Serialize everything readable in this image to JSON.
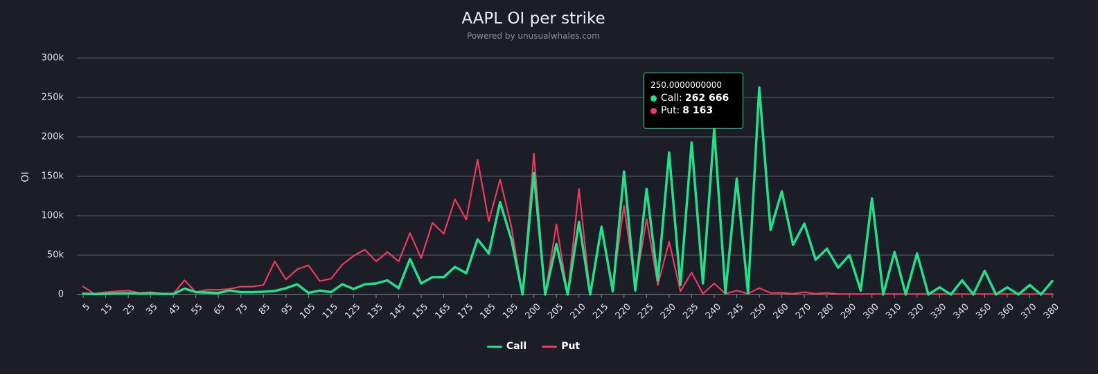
{
  "title": "AAPL OI per strike",
  "subtitle": "Powered by unusualwhales.com",
  "chart_data": {
    "type": "line",
    "title": "AAPL OI per strike",
    "subtitle": "Powered by unusualwhales.com",
    "xlabel": "",
    "ylabel": "OI",
    "ylim": [
      0,
      300000
    ],
    "y_ticks": [
      "0",
      "50k",
      "100k",
      "150k",
      "200k",
      "250k",
      "300k"
    ],
    "grid": true,
    "legend_position": "bottom",
    "x": [
      5,
      10,
      15,
      20,
      25,
      30,
      35,
      40,
      45,
      50,
      55,
      60,
      65,
      70,
      75,
      80,
      85,
      90,
      95,
      100,
      105,
      110,
      115,
      120,
      125,
      130,
      135,
      140,
      145,
      150,
      155,
      160,
      165,
      170,
      175,
      180,
      185,
      190,
      195,
      197.5,
      200,
      202.5,
      205,
      207.5,
      210,
      212.5,
      215,
      217.5,
      220,
      222.5,
      225,
      227.5,
      230,
      232.5,
      235,
      237.5,
      240,
      242.5,
      245,
      247.5,
      250,
      255,
      260,
      265,
      270,
      275,
      280,
      285,
      290,
      295,
      300,
      305,
      310,
      315,
      320,
      325,
      330,
      335,
      340,
      345,
      350,
      355,
      360,
      365,
      370,
      375,
      380
    ],
    "x_tick_labels": [
      "5",
      "15",
      "25",
      "35",
      "45",
      "55",
      "65",
      "75",
      "85",
      "95",
      "105",
      "115",
      "125",
      "135",
      "145",
      "155",
      "165",
      "175",
      "185",
      "195",
      "200",
      "205",
      "210",
      "215",
      "220",
      "225",
      "230",
      "235",
      "240",
      "245",
      "250",
      "260",
      "270",
      "280",
      "290",
      "300",
      "310",
      "320",
      "330",
      "340",
      "350",
      "360",
      "370",
      "380"
    ],
    "series": [
      {
        "name": "Call",
        "color": "#21e18b",
        "values": [
          1000,
          500,
          800,
          1200,
          1500,
          1000,
          1300,
          800,
          600,
          7500,
          3000,
          2500,
          2000,
          5000,
          3000,
          3000,
          3500,
          4500,
          8000,
          13000,
          2000,
          5000,
          3000,
          13000,
          7000,
          13000,
          14000,
          18000,
          8000,
          45000,
          14000,
          22000,
          22000,
          35000,
          27000,
          70000,
          52000,
          117000,
          70000,
          0,
          154000,
          0,
          64000,
          0,
          92000,
          0,
          86000,
          4000,
          156000,
          5000,
          134000,
          18000,
          180000,
          12000,
          193000,
          14000,
          210000,
          2000,
          147000,
          2000,
          262666,
          82000,
          131000,
          63000,
          90000,
          44000,
          58000,
          34000,
          50000,
          5000,
          122000,
          0,
          54000,
          0,
          52000,
          0,
          9000,
          0,
          18000,
          0,
          30000,
          0,
          9000,
          0,
          12000,
          0,
          17000
        ]
      },
      {
        "name": "Put",
        "color": "#ef3a5d",
        "values": [
          10000,
          1000,
          3000,
          4000,
          5000,
          2000,
          3000,
          1000,
          1000,
          18000,
          3000,
          6000,
          6000,
          7000,
          10000,
          10000,
          12000,
          42000,
          19000,
          32000,
          37000,
          17000,
          20000,
          38000,
          49000,
          57000,
          42000,
          54000,
          42000,
          78000,
          46000,
          91000,
          77000,
          121000,
          95000,
          171000,
          93000,
          146000,
          86000,
          0,
          179000,
          0,
          89000,
          0,
          134000,
          0,
          83000,
          10000,
          113000,
          10000,
          96000,
          12000,
          67000,
          4000,
          28000,
          1000,
          14000,
          1000,
          5000,
          1000,
          8163,
          2000,
          2000,
          1000,
          3000,
          1000,
          2000,
          500,
          500,
          500,
          500,
          500,
          500,
          500,
          500,
          500,
          500,
          500,
          500,
          500,
          500,
          500,
          500,
          500,
          500,
          500,
          500
        ]
      }
    ]
  },
  "legend": [
    {
      "label": "Call",
      "color": "#21e18b"
    },
    {
      "label": "Put",
      "color": "#ef3a5d"
    }
  ],
  "tooltip": {
    "header": "250.0000000000",
    "call_label": "Call:",
    "call_value": "262 666",
    "put_label": "Put:",
    "put_value": "8 163"
  }
}
